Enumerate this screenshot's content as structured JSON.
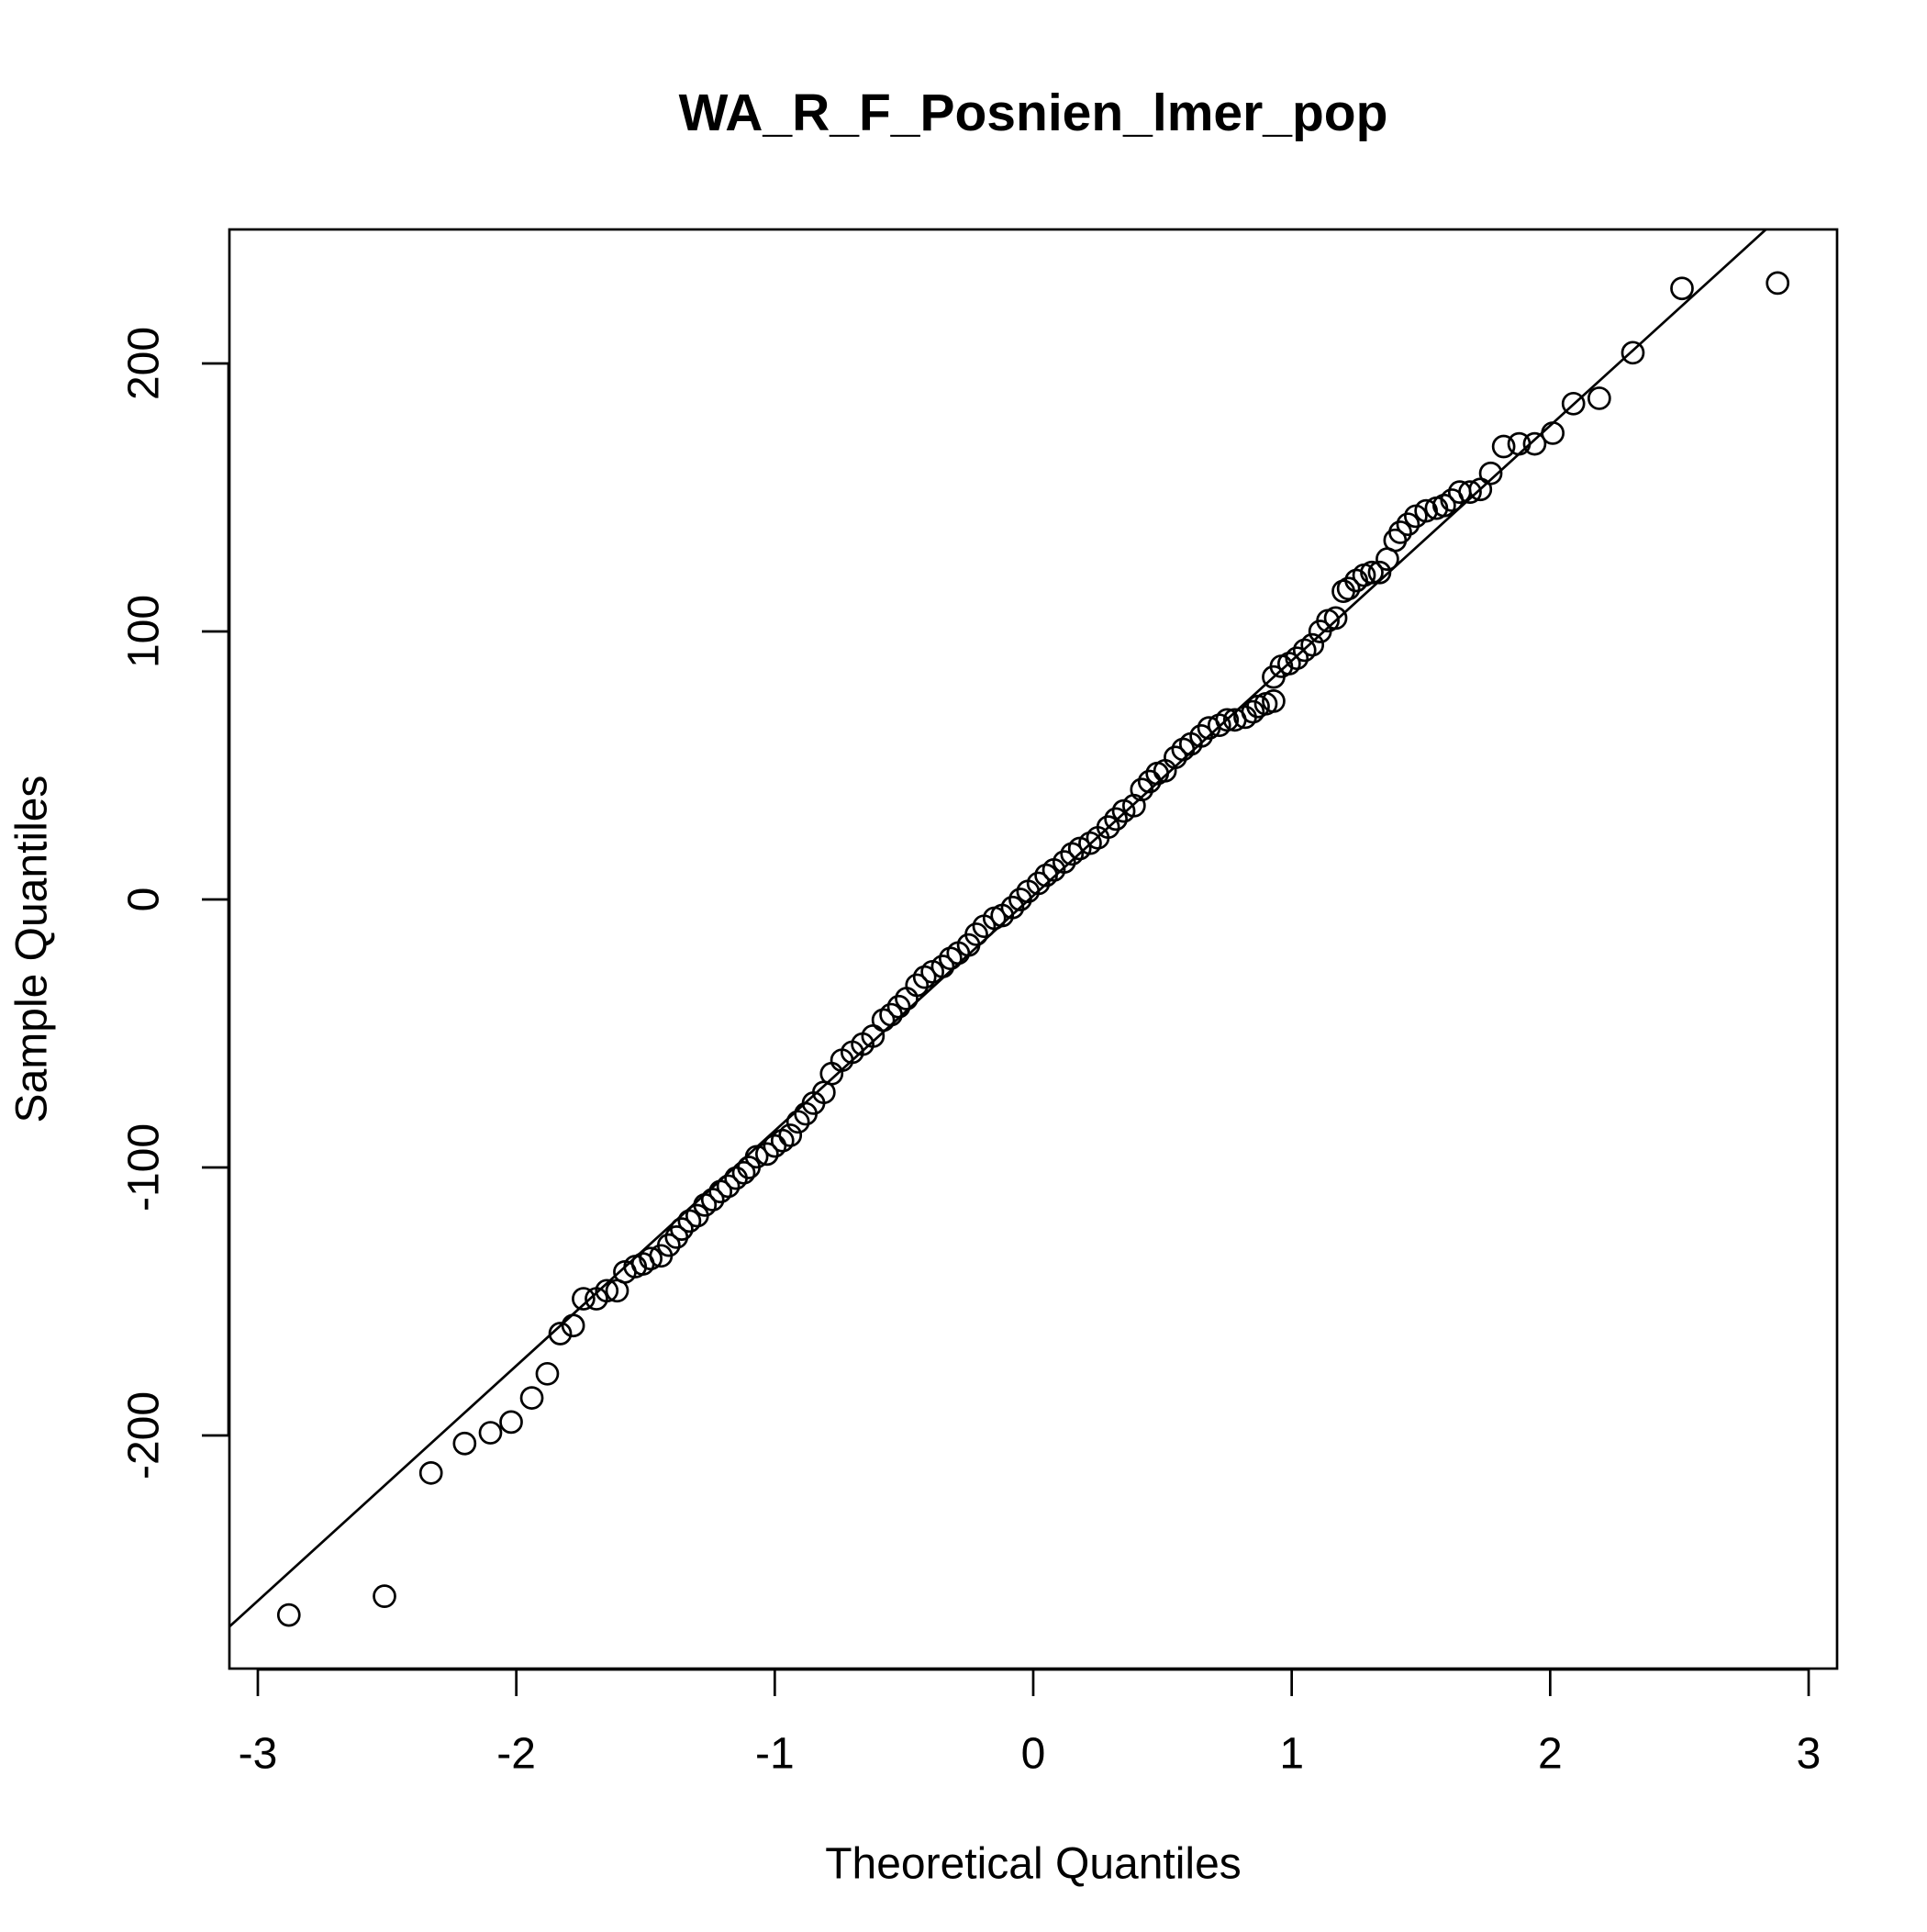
{
  "chart_data": {
    "type": "scatter",
    "title": "WA_R_F_Posnien_lmer_pop",
    "x_label": "Theoretical Quantiles",
    "y_label": "Sample Quantiles",
    "xlim": [
      -3.11,
      3.11
    ],
    "ylim": [
      -287,
      250
    ],
    "xticks": [
      -3,
      -2,
      -1,
      0,
      1,
      2,
      3
    ],
    "yticks": [
      -200,
      -100,
      0,
      100,
      200
    ],
    "color": "#000000",
    "reference_line": {
      "intercept": 1.4,
      "slope": 87.7
    },
    "x": [
      -2.88,
      -2.51,
      -2.33,
      -2.2,
      -2.1,
      -2.02,
      -1.94,
      -1.88,
      -1.83,
      -1.78,
      -1.74,
      -1.69,
      -1.65,
      -1.61,
      -1.58,
      -1.54,
      -1.51,
      -1.48,
      -1.44,
      -1.41,
      -1.38,
      -1.36,
      -1.33,
      -1.3,
      -1.27,
      -1.24,
      -1.21,
      -1.18,
      -1.15,
      -1.12,
      -1.1,
      -1.07,
      -1.03,
      -1.0,
      -0.97,
      -0.94,
      -0.91,
      -0.88,
      -0.85,
      -0.81,
      -0.78,
      -0.74,
      -0.7,
      -0.66,
      -0.62,
      -0.58,
      -0.55,
      -0.52,
      -0.49,
      -0.45,
      -0.42,
      -0.39,
      -0.35,
      -0.32,
      -0.29,
      -0.25,
      -0.22,
      -0.19,
      -0.15,
      -0.12,
      -0.08,
      -0.05,
      -0.02,
      0.02,
      0.05,
      0.08,
      0.12,
      0.15,
      0.18,
      0.22,
      0.25,
      0.29,
      0.32,
      0.35,
      0.39,
      0.42,
      0.45,
      0.48,
      0.51,
      0.55,
      0.58,
      0.61,
      0.65,
      0.68,
      0.72,
      0.75,
      0.78,
      0.82,
      0.85,
      0.87,
      0.9,
      0.93,
      0.93,
      0.96,
      0.99,
      1.02,
      1.05,
      1.08,
      1.11,
      1.14,
      1.17,
      1.2,
      1.22,
      1.25,
      1.28,
      1.31,
      1.34,
      1.37,
      1.4,
      1.42,
      1.45,
      1.48,
      1.52,
      1.56,
      1.59,
      1.62,
      1.65,
      1.69,
      1.73,
      1.77,
      1.82,
      1.88,
      1.94,
      2.01,
      2.09,
      2.19,
      2.32,
      2.51,
      2.88
    ],
    "values": [
      -267,
      -260,
      -214,
      -203,
      -199,
      -195,
      -186,
      -177,
      -162,
      -159,
      -149,
      -149,
      -146,
      -146,
      -139,
      -137,
      -136,
      -134,
      -133,
      -129,
      -126,
      -123,
      -120,
      -118,
      -114,
      -112,
      -109,
      -107,
      -104,
      -102,
      -100,
      -96,
      -95,
      -92,
      -90,
      -88,
      -83,
      -80,
      -76,
      -72,
      -65,
      -60,
      -57,
      -54,
      -51,
      -45,
      -43,
      -40,
      -37,
      -32,
      -29,
      -27,
      -25,
      -22,
      -20,
      -17,
      -13,
      -10,
      -7,
      -6,
      -3,
      0,
      3,
      6,
      9,
      11,
      14,
      17,
      19,
      21,
      23,
      27,
      30,
      33,
      35,
      41,
      44,
      47,
      48,
      53,
      56,
      58,
      61,
      64,
      65,
      67,
      67,
      68,
      70,
      72,
      73,
      74,
      83,
      87,
      88,
      90,
      93,
      95,
      100,
      104,
      105,
      115,
      116,
      119,
      121,
      122,
      122,
      127,
      134,
      137,
      140,
      143,
      145,
      146,
      147,
      149,
      152,
      152,
      153,
      159,
      169,
      170,
      170,
      174,
      185,
      187,
      204,
      228,
      230
    ]
  }
}
